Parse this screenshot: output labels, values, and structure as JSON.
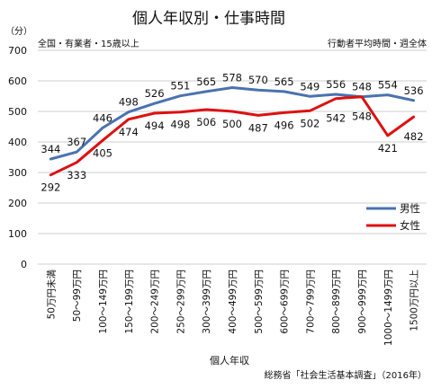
{
  "chart_data": {
    "type": "line",
    "title": "個人年収別・仕事時間",
    "subtitle_left": "全国・有業者・15歳以上",
    "subtitle_right": "行動者平均時間・週全体",
    "ylabel": "（分）",
    "xlabel": "個人年収",
    "source": "総務省「社会生活基本調査」（2016年）",
    "ylim": [
      0,
      700
    ],
    "yticks": [
      "0",
      "100",
      "200",
      "300",
      "400",
      "500",
      "600",
      "700"
    ],
    "grid": true,
    "legend_position": "right",
    "categories": [
      "50万円未満",
      "50〜99万円",
      "100〜149万円",
      "150〜199万円",
      "200〜249万円",
      "250〜299万円",
      "300〜399万円",
      "400〜499万円",
      "500〜599万円",
      "600〜699万円",
      "700〜799万円",
      "800〜899万円",
      "900〜999万円",
      "1000〜1499万円",
      "1500万円以上"
    ],
    "series": [
      {
        "name": "男性",
        "color": "#4a72b0",
        "values": [
          344,
          367,
          446,
          498,
          526,
          551,
          565,
          578,
          570,
          565,
          549,
          556,
          548,
          554,
          536
        ]
      },
      {
        "name": "女性",
        "color": "#dd1111",
        "values": [
          292,
          333,
          405,
          474,
          494,
          498,
          506,
          500,
          487,
          496,
          502,
          542,
          548,
          421,
          482
        ]
      }
    ]
  }
}
